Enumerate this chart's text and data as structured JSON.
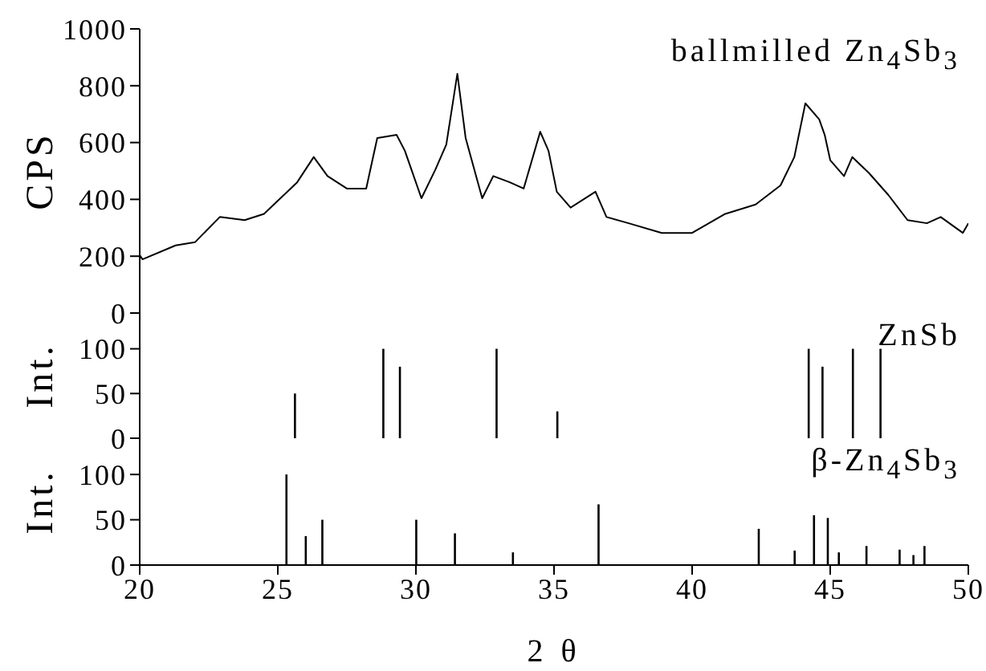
{
  "chart_data": [
    {
      "type": "line",
      "ylabel": "CPS",
      "annotations": [
        "ballmilled Zn$_{4}$Sb$_{3}$"
      ],
      "xlim": [
        20,
        50
      ],
      "xticks": [
        20,
        25,
        30,
        35,
        40,
        45,
        50
      ],
      "ylim": [
        0,
        1000
      ],
      "yticks": [
        0,
        200,
        400,
        600,
        800,
        1000
      ],
      "tick_labels": "y",
      "grid": false,
      "legend": false,
      "marker": "none",
      "x": [
        20.0,
        20.1,
        21.3,
        22.0,
        22.9,
        23.8,
        24.5,
        25.7,
        26.3,
        26.8,
        27.5,
        28.2,
        28.6,
        29.3,
        29.6,
        30.2,
        30.7,
        31.1,
        31.5,
        31.8,
        32.4,
        32.8,
        33.4,
        33.9,
        34.5,
        34.8,
        35.1,
        35.6,
        36.5,
        36.9,
        37.7,
        38.9,
        40.0,
        41.2,
        42.3,
        43.2,
        43.7,
        44.1,
        44.6,
        44.8,
        45.0,
        45.5,
        45.8,
        46.4,
        47.1,
        47.8,
        48.5,
        49.0,
        49.8,
        50.0
      ],
      "series": [
        {
          "color": "#000000",
          "values": [
            204,
            189,
            238,
            249,
            338,
            327,
            349,
            460,
            549,
            482,
            438,
            438,
            616,
            627,
            571,
            404,
            504,
            593,
            842,
            616,
            404,
            482,
            460,
            438,
            638,
            571,
            427,
            371,
            427,
            338,
            316,
            282,
            282,
            349,
            382,
            449,
            549,
            738,
            682,
            627,
            538,
            482,
            549,
            493,
            416,
            327,
            316,
            338,
            282,
            316
          ]
        }
      ]
    },
    {
      "type": "bar",
      "ylabel": "Int.",
      "annotations": [
        "ZnSb"
      ],
      "xlim": [
        20,
        50
      ],
      "xticks": [
        20,
        25,
        30,
        35,
        40,
        45,
        50
      ],
      "ylim": [
        0,
        140
      ],
      "yticks": [
        0,
        50,
        100
      ],
      "tick_labels": "y",
      "grid": false,
      "legend": false,
      "x": [
        25.6,
        28.8,
        29.4,
        32.9,
        35.1,
        44.2,
        44.7,
        45.8,
        46.8
      ],
      "series": [
        {
          "color": "#000000",
          "values": [
            50,
            100,
            80,
            100,
            30,
            100,
            80,
            100,
            100
          ]
        }
      ]
    },
    {
      "type": "bar",
      "ylabel": "Int.",
      "xlabel": "2 θ",
      "annotations": [
        "β-Zn$_{4}$Sb$_{3}$"
      ],
      "xlim": [
        20,
        50
      ],
      "xticks": [
        20,
        25,
        30,
        35,
        40,
        45,
        50
      ],
      "ylim": [
        0,
        140
      ],
      "yticks": [
        0,
        50,
        100
      ],
      "grid": false,
      "legend": false,
      "x": [
        25.3,
        26.0,
        26.6,
        30.0,
        31.4,
        33.5,
        36.6,
        42.4,
        43.7,
        44.4,
        44.9,
        45.3,
        46.3,
        47.5,
        48.0,
        48.4
      ],
      "series": [
        {
          "color": "#000000",
          "values": [
            100,
            32,
            50,
            50,
            35,
            14,
            67,
            40,
            16,
            55,
            52,
            14,
            21,
            17,
            11,
            21
          ]
        }
      ]
    }
  ]
}
